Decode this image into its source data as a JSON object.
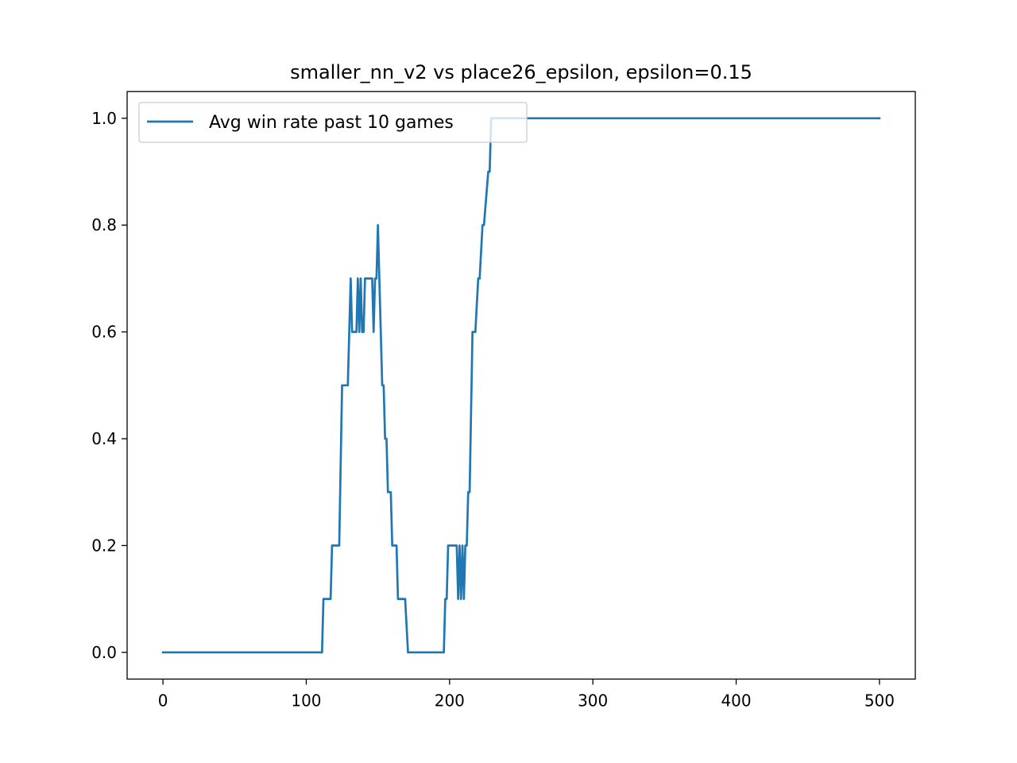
{
  "chart_data": {
    "type": "line",
    "title": "smaller_nn_v2 vs place26_epsilon, epsilon=0.15",
    "xlabel": "",
    "ylabel": "",
    "xlim": [
      -25,
      525
    ],
    "ylim": [
      -0.05,
      1.05
    ],
    "xticks": [
      0,
      100,
      200,
      300,
      400,
      500
    ],
    "yticks": [
      0.0,
      0.2,
      0.4,
      0.6,
      0.8,
      1.0
    ],
    "xtick_labels": [
      "0",
      "100",
      "200",
      "300",
      "400",
      "500"
    ],
    "ytick_labels": [
      "0.0",
      "0.2",
      "0.4",
      "0.6",
      "0.8",
      "1.0"
    ],
    "grid": false,
    "legend_position": "top-left",
    "series": [
      {
        "name": "Avg win rate past 10 games",
        "color": "#1f77b4",
        "x": [
          0,
          111,
          112,
          117,
          118,
          123,
          125,
          129,
          131,
          132,
          135,
          136,
          137,
          138,
          139,
          140,
          141,
          142,
          143,
          146,
          147,
          148,
          149,
          150,
          153,
          154,
          155,
          156,
          157,
          159,
          160,
          163,
          164,
          169,
          171,
          196,
          197,
          198,
          199,
          205,
          206,
          207,
          208,
          209,
          210,
          211,
          212,
          213,
          214,
          216,
          218,
          220,
          221,
          223,
          224,
          227,
          228,
          229,
          231,
          233,
          500
        ],
        "y": [
          0.0,
          0.0,
          0.1,
          0.1,
          0.2,
          0.2,
          0.5,
          0.5,
          0.7,
          0.6,
          0.6,
          0.7,
          0.6,
          0.7,
          0.6,
          0.6,
          0.7,
          0.7,
          0.7,
          0.7,
          0.6,
          0.7,
          0.7,
          0.8,
          0.5,
          0.5,
          0.4,
          0.4,
          0.3,
          0.3,
          0.2,
          0.2,
          0.1,
          0.1,
          0.0,
          0.0,
          0.1,
          0.1,
          0.2,
          0.2,
          0.1,
          0.2,
          0.1,
          0.2,
          0.1,
          0.2,
          0.2,
          0.3,
          0.3,
          0.6,
          0.6,
          0.7,
          0.7,
          0.8,
          0.8,
          0.9,
          0.9,
          1.0,
          1.0,
          1.0,
          1.0
        ]
      }
    ]
  }
}
